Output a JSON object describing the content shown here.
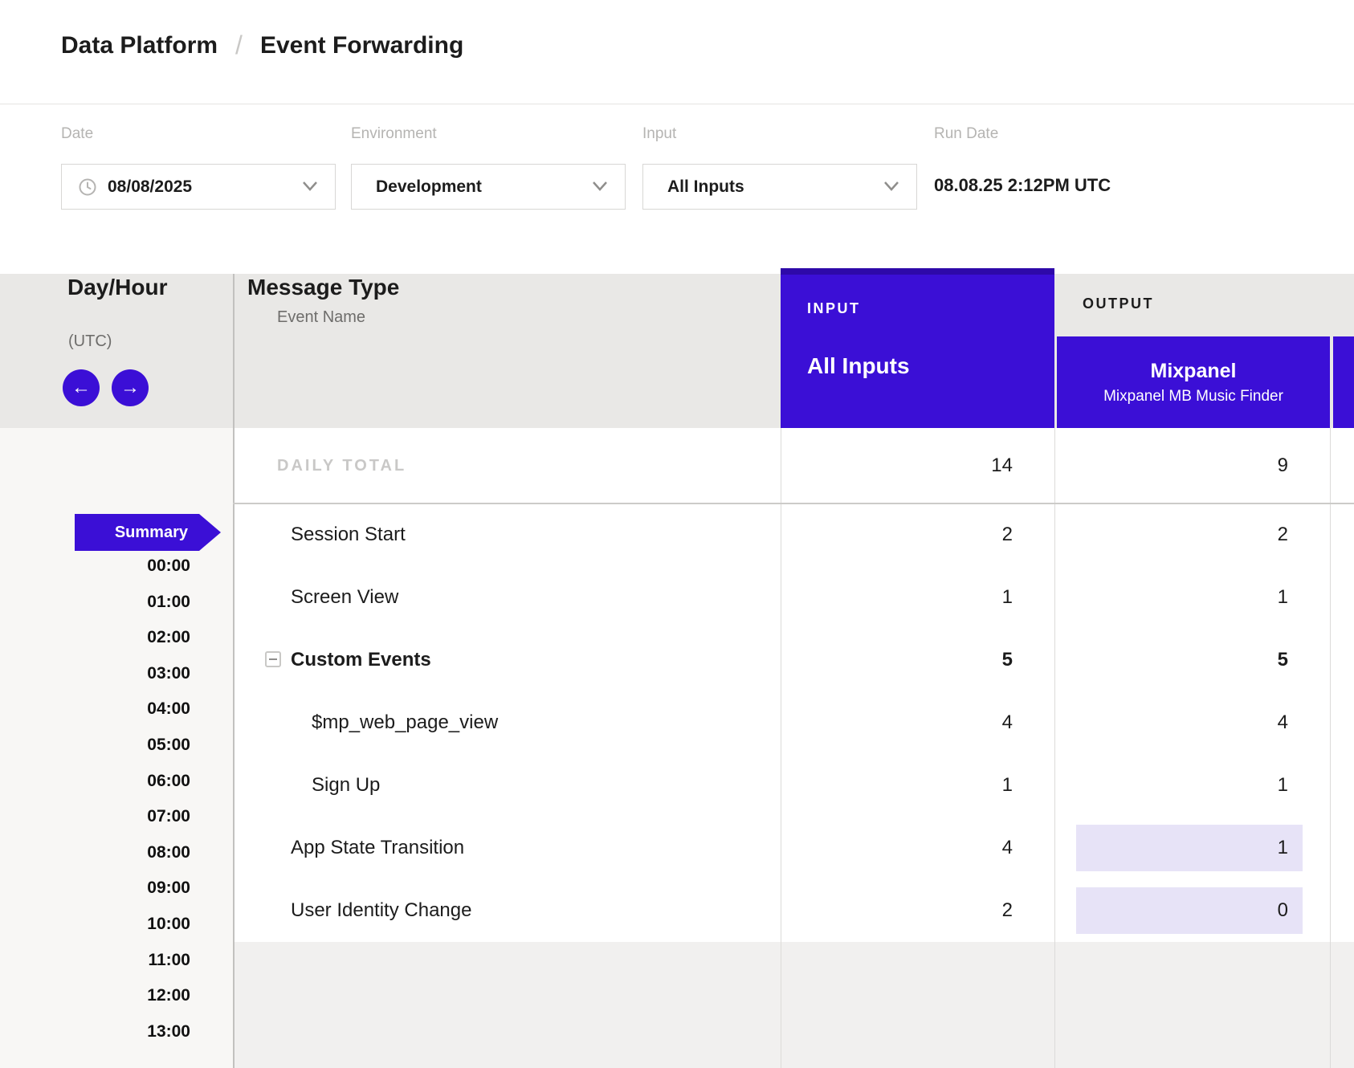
{
  "breadcrumb": {
    "section": "Data Platform",
    "separator": "/",
    "page": "Event Forwarding"
  },
  "filters": {
    "date": {
      "label": "Date",
      "value": "08/08/2025"
    },
    "environment": {
      "label": "Environment",
      "value": "Development"
    },
    "input": {
      "label": "Input",
      "value": "All Inputs"
    },
    "run_date": {
      "label": "Run Date",
      "value": "08.08.25 2:12PM UTC"
    }
  },
  "table": {
    "day_hour": {
      "title": "Day/Hour",
      "subtitle": "(UTC)"
    },
    "message_type": {
      "title": "Message Type",
      "subtitle": "Event Name"
    },
    "input_column": {
      "section_label": "INPUT",
      "name": "All Inputs"
    },
    "output_column": {
      "section_label": "OUTPUT",
      "connection_title": "Mixpanel",
      "connection_subtitle": "Mixpanel MB Music Finder"
    },
    "daily_total": {
      "label": "DAILY TOTAL",
      "input": "14",
      "output": "9"
    },
    "rows": [
      {
        "name": "Session Start",
        "input": "2",
        "output": "2",
        "bold": false,
        "indent": 0,
        "toggle": false,
        "output_highlight": false
      },
      {
        "name": "Screen View",
        "input": "1",
        "output": "1",
        "bold": false,
        "indent": 0,
        "toggle": false,
        "output_highlight": false
      },
      {
        "name": "Custom Events",
        "input": "5",
        "output": "5",
        "bold": true,
        "indent": 0,
        "toggle": true,
        "output_highlight": false
      },
      {
        "name": "$mp_web_page_view",
        "input": "4",
        "output": "4",
        "bold": false,
        "indent": 1,
        "toggle": false,
        "output_highlight": false
      },
      {
        "name": "Sign Up",
        "input": "1",
        "output": "1",
        "bold": false,
        "indent": 1,
        "toggle": false,
        "output_highlight": false
      },
      {
        "name": "App State Transition",
        "input": "4",
        "output": "1",
        "bold": false,
        "indent": 0,
        "toggle": false,
        "output_highlight": true
      },
      {
        "name": "User Identity Change",
        "input": "2",
        "output": "0",
        "bold": false,
        "indent": 0,
        "toggle": false,
        "output_highlight": true
      }
    ],
    "summary_label": "Summary",
    "hours": [
      "00:00",
      "01:00",
      "02:00",
      "03:00",
      "04:00",
      "05:00",
      "06:00",
      "07:00",
      "08:00",
      "09:00",
      "10:00",
      "11:00",
      "12:00",
      "13:00"
    ],
    "nav": {
      "prev": "←",
      "next": "→"
    }
  },
  "colors": {
    "accent_purple": "#3b0fd6",
    "accent_purple_dark": "#2e09a9",
    "highlight_lavender": "#e7e3f7",
    "header_gray": "#e9e8e6"
  }
}
